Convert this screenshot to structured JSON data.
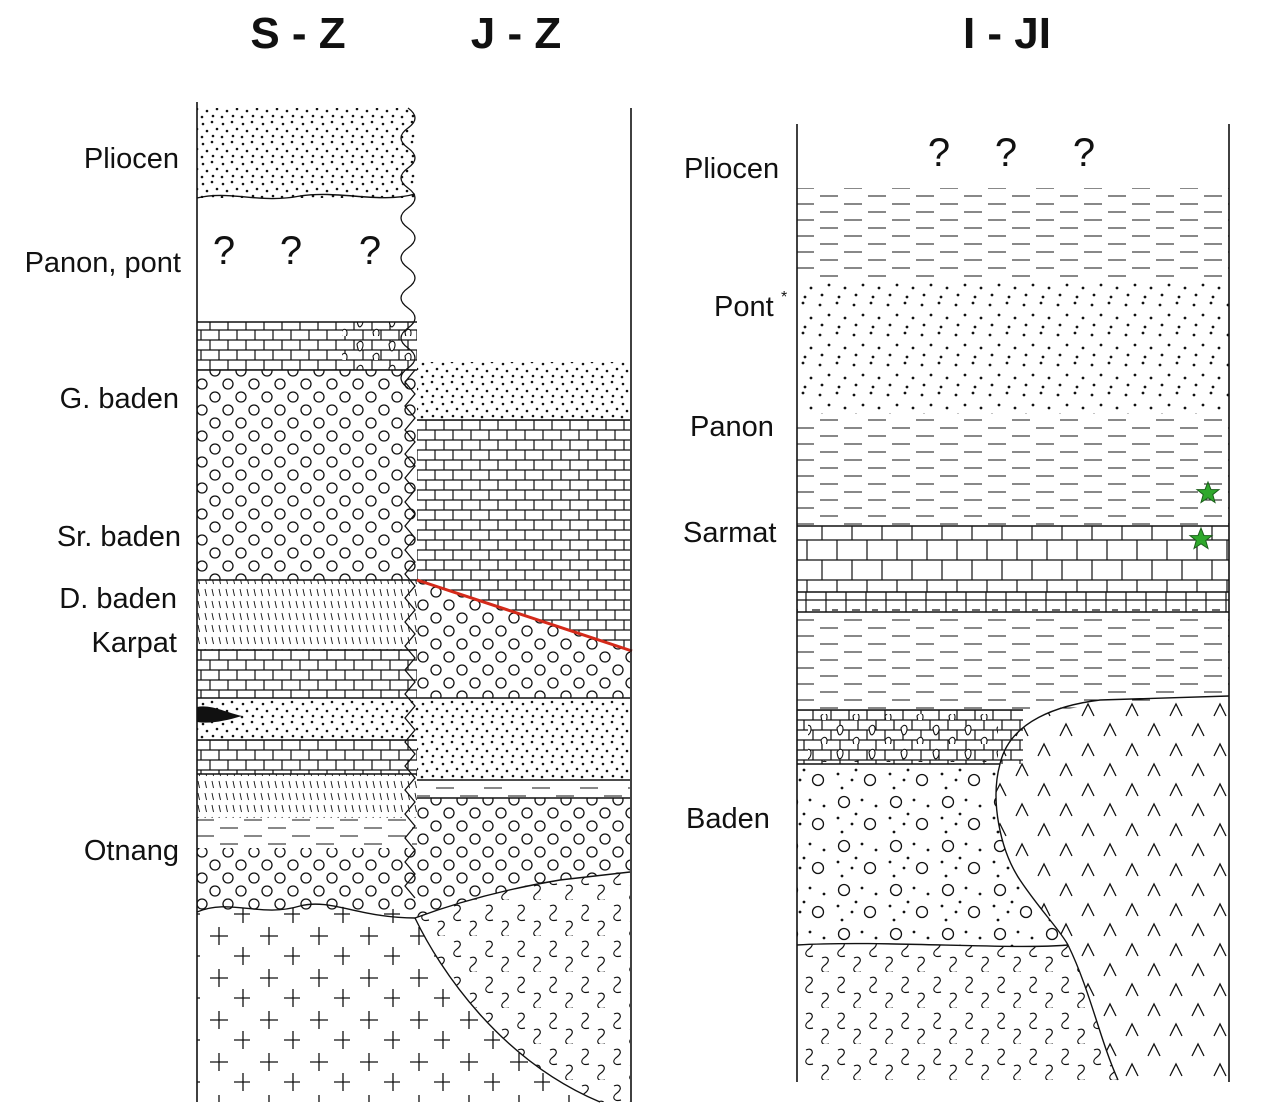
{
  "columns": {
    "sz_title": "S - Z",
    "jz_title": "J - Z",
    "ijl_title": "I - JI"
  },
  "left_labels": {
    "pliocen": "Pliocen",
    "panon_pont": "Panon, pont",
    "g_baden": "G. baden",
    "sr_baden": "Sr. baden",
    "d_baden": "D. baden",
    "karpat": "Karpat",
    "otnang": "Otnang"
  },
  "right_labels": {
    "pliocen": "Pliocen",
    "pont": "Pont",
    "pont_mark": "*",
    "panon": "Panon",
    "sarmat": "Sarmat",
    "baden": "Baden"
  },
  "unknown_marks": {
    "left": [
      "?",
      "?",
      "?"
    ],
    "right": [
      "?",
      "?",
      "?"
    ]
  },
  "colors": {
    "fault_line": "#d42a1a",
    "star_marker": "#2fa82c",
    "ink": "#111111"
  }
}
